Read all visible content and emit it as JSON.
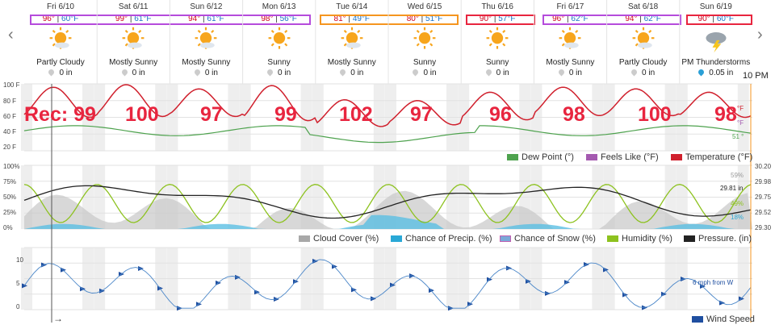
{
  "nav": {
    "prev": "‹",
    "next": "›"
  },
  "days": [
    {
      "name": "Fri 6/10",
      "hi": "96°",
      "lo": "60°F",
      "cond": "Partly Cloudy",
      "precip": "0 in",
      "icon": "partly-cloudy-icon"
    },
    {
      "name": "Sat 6/11",
      "hi": "99°",
      "lo": "61°F",
      "cond": "Mostly Sunny",
      "precip": "0 in",
      "icon": "mostly-sunny-icon"
    },
    {
      "name": "Sun 6/12",
      "hi": "94°",
      "lo": "61°F",
      "cond": "Mostly Sunny",
      "precip": "0 in",
      "icon": "mostly-sunny-icon"
    },
    {
      "name": "Mon 6/13",
      "hi": "98°",
      "lo": "56°F",
      "cond": "Sunny",
      "precip": "0 in",
      "icon": "sunny-icon"
    },
    {
      "name": "Tue 6/14",
      "hi": "81°",
      "lo": "49°F",
      "cond": "Mostly Sunny",
      "precip": "0 in",
      "icon": "mostly-sunny-icon"
    },
    {
      "name": "Wed 6/15",
      "hi": "80°",
      "lo": "51°F",
      "cond": "Sunny",
      "precip": "0 in",
      "icon": "sunny-icon"
    },
    {
      "name": "Thu 6/16",
      "hi": "90°",
      "lo": "57°F",
      "cond": "Sunny",
      "precip": "0 in",
      "icon": "sunny-icon"
    },
    {
      "name": "Fri 6/17",
      "hi": "96°",
      "lo": "62°F",
      "cond": "Mostly Sunny",
      "precip": "0 in",
      "icon": "mostly-sunny-icon"
    },
    {
      "name": "Sat 6/18",
      "hi": "94°",
      "lo": "62°F",
      "cond": "Partly Cloudy",
      "precip": "0 in",
      "icon": "partly-cloudy-icon"
    },
    {
      "name": "Sun 6/19",
      "hi": "90°",
      "lo": "60°F",
      "cond": "PM Thunderstorms",
      "precip": "0.05 in",
      "icon": "thunderstorm-icon"
    }
  ],
  "highlight_colors": {
    "purple": "#b54bdc",
    "orange": "#f5951f",
    "red": "#e8253f"
  },
  "time_label": "10 PM",
  "records": {
    "prefix": "Rec: ",
    "values": [
      "99",
      "100",
      "97",
      "99",
      "102",
      "97",
      "96",
      "98",
      "100",
      "98"
    ]
  },
  "chart_data": [
    {
      "type": "line",
      "y_ticks": [
        "100 F",
        "80 F",
        "60 F",
        "40 F",
        "20 F"
      ],
      "ylim": [
        20,
        100
      ],
      "legend": [
        "Dew Point (°)",
        "Feels Like (°F)",
        "Temperature (°F)"
      ],
      "legend_colors": [
        "#4ea24e",
        "#a45ab0",
        "#d0202d"
      ],
      "end_labels": [
        "°F",
        "°F",
        "51 °"
      ]
    },
    {
      "type": "area",
      "y_ticks_left": [
        "100%",
        "75%",
        "50%",
        "25%",
        "0%"
      ],
      "y_ticks_right": [
        "30.20",
        "29.98",
        "29.75",
        "29.52",
        "29.30"
      ],
      "ylim": [
        0,
        100
      ],
      "legend": [
        "Cloud Cover (%)",
        "Chance of Precip. (%)",
        "Chance of Snow (%)",
        "Humidity (%)",
        "Pressure. (in)"
      ],
      "legend_colors": [
        "#a8a8a8",
        "#29a8d6",
        "#7aa8d8",
        "#8dc21f",
        "#222222"
      ],
      "end_labels": [
        "59%",
        "29.81 in",
        "49%",
        "18%"
      ]
    },
    {
      "type": "line",
      "y_ticks": [
        "10",
        "5",
        "0"
      ],
      "ylim": [
        0,
        13
      ],
      "legend": [
        "Wind Speed"
      ],
      "legend_colors": [
        "#1f4fa0"
      ],
      "end_labels": [
        "6 mph from W"
      ]
    }
  ],
  "bottom_arrow": "→"
}
